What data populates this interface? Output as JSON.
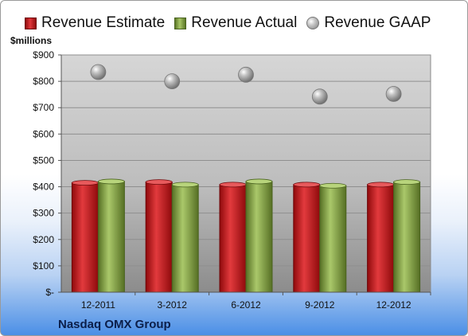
{
  "header": {
    "unit_label": "$millions"
  },
  "footer": {
    "company": "Nasdaq OMX Group"
  },
  "legend": {
    "items": [
      {
        "label": "Revenue Estimate",
        "icon": "red-bar-swatch"
      },
      {
        "label": "Revenue Actual",
        "icon": "green-bar-swatch"
      },
      {
        "label": "Revenue GAAP",
        "icon": "gray-sphere-marker"
      }
    ]
  },
  "colors": {
    "estimate": "#c8181c",
    "actual": "#86a84a",
    "gaap": "#a8a8a8",
    "plot_background": "#c9c9c9"
  },
  "chart_data": {
    "type": "bar",
    "title": "",
    "xlabel": "",
    "ylabel": "$millions",
    "ylim": [
      0,
      900
    ],
    "yticks": [
      0,
      100,
      200,
      300,
      400,
      500,
      600,
      700,
      800,
      900
    ],
    "ytick_labels": [
      "$-",
      "$100",
      "$200",
      "$300",
      "$400",
      "$500",
      "$600",
      "$700",
      "$800",
      "$900"
    ],
    "grid": true,
    "legend_position": "top",
    "categories": [
      "12-2011",
      "3-2012",
      "6-2012",
      "9-2012",
      "12-2012"
    ],
    "series": [
      {
        "name": "Revenue Estimate",
        "kind": "bar",
        "values": [
          415,
          418,
          408,
          408,
          408
        ]
      },
      {
        "name": "Revenue Actual",
        "kind": "bar",
        "values": [
          420,
          408,
          420,
          404,
          418
        ]
      },
      {
        "name": "Revenue GAAP",
        "kind": "scatter",
        "values": [
          835,
          800,
          825,
          742,
          752
        ]
      }
    ]
  }
}
